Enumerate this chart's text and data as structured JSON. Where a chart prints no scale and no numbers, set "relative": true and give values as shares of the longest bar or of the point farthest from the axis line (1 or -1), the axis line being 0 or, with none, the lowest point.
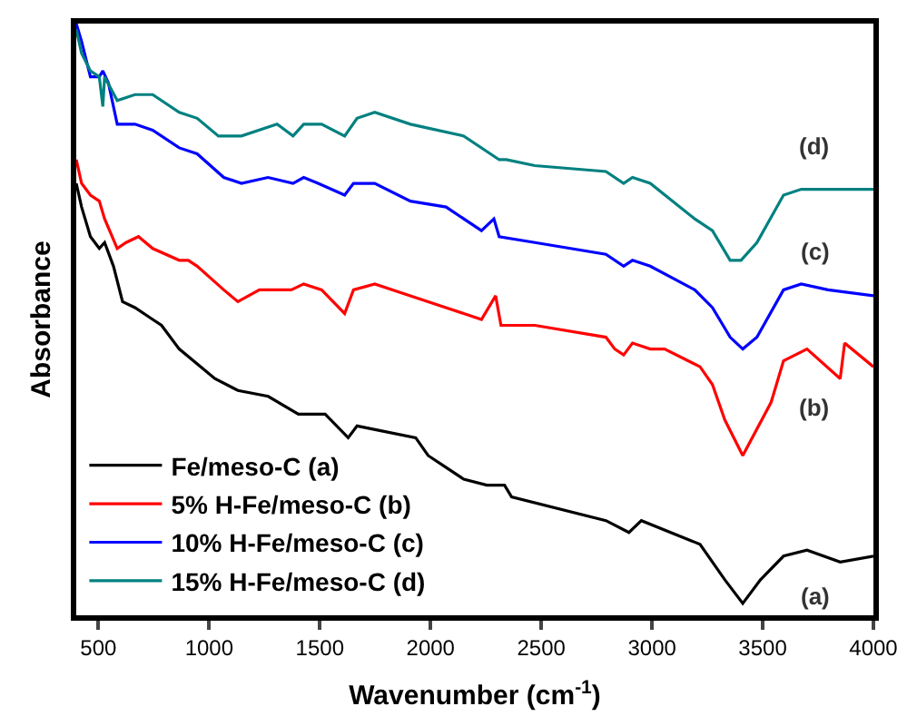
{
  "chart_data": {
    "type": "line",
    "relative": true,
    "xlabel": "Wavenumber (cm$^{-1}$)",
    "ylabel": "Absorbance",
    "xlim": [
      400,
      4000
    ],
    "xticks": [
      500,
      1000,
      1500,
      2000,
      2500,
      3000,
      3500,
      4000
    ],
    "legend": "bottom left",
    "tick_labels": "x",
    "series": [
      {
        "name": "Fe/meso-C (a)",
        "color": "#000000",
        "x": [
          400,
          424,
          464,
          504,
          528,
          568,
          609,
          665,
          745,
          785,
          865,
          1026,
          1130,
          1267,
          1403,
          1524,
          1628,
          1668,
          1933,
          1989,
          2150,
          2254,
          2334,
          2366,
          2792,
          2896,
          2952,
          3217,
          3329,
          3410,
          3490,
          3594,
          3700,
          3850,
          4000
        ],
        "values": [
          0.73,
          0.69,
          0.64,
          0.62,
          0.63,
          0.59,
          0.53,
          0.52,
          0.5,
          0.49,
          0.45,
          0.4,
          0.38,
          0.37,
          0.34,
          0.34,
          0.3,
          0.32,
          0.3,
          0.27,
          0.23,
          0.22,
          0.22,
          0.2,
          0.16,
          0.14,
          0.16,
          0.12,
          0.06,
          0.02,
          0.06,
          0.1,
          0.11,
          0.09,
          0.1
        ]
      },
      {
        "name": "5% H-Fe/meso-C (b)",
        "color": "#ff0000",
        "x": [
          400,
          424,
          464,
          504,
          528,
          585,
          625,
          681,
          745,
          865,
          906,
          946,
          1066,
          1130,
          1227,
          1371,
          1427,
          1508,
          1612,
          1652,
          1748,
          1989,
          2150,
          2230,
          2294,
          2318,
          2471,
          2792,
          2832,
          2872,
          2912,
          2992,
          3057,
          3217,
          3273,
          3329,
          3410,
          3538,
          3594,
          3700,
          3850,
          3870,
          4000
        ],
        "values": [
          0.77,
          0.73,
          0.71,
          0.7,
          0.67,
          0.62,
          0.63,
          0.64,
          0.62,
          0.6,
          0.6,
          0.59,
          0.55,
          0.53,
          0.55,
          0.55,
          0.56,
          0.55,
          0.51,
          0.55,
          0.56,
          0.53,
          0.51,
          0.5,
          0.54,
          0.49,
          0.49,
          0.47,
          0.45,
          0.44,
          0.46,
          0.45,
          0.45,
          0.42,
          0.39,
          0.33,
          0.27,
          0.36,
          0.43,
          0.45,
          0.4,
          0.46,
          0.42
        ]
      },
      {
        "name": "10% H-Fe/meso-C (c)",
        "color": "#0000ff",
        "x": [
          400,
          424,
          464,
          504,
          520,
          545,
          585,
          665,
          745,
          865,
          946,
          1066,
          1146,
          1266,
          1379,
          1427,
          1492,
          1612,
          1652,
          1748,
          1909,
          2070,
          2230,
          2286,
          2310,
          2471,
          2792,
          2872,
          2912,
          2992,
          3193,
          3273,
          3353,
          3410,
          3474,
          3594,
          3674,
          3795,
          4000
        ],
        "values": [
          1.0,
          0.97,
          0.91,
          0.91,
          0.92,
          0.9,
          0.83,
          0.83,
          0.82,
          0.79,
          0.78,
          0.74,
          0.73,
          0.74,
          0.73,
          0.74,
          0.73,
          0.71,
          0.73,
          0.73,
          0.7,
          0.69,
          0.65,
          0.67,
          0.64,
          0.63,
          0.61,
          0.59,
          0.6,
          0.59,
          0.55,
          0.52,
          0.47,
          0.45,
          0.47,
          0.55,
          0.56,
          0.55,
          0.54
        ]
      },
      {
        "name": "15% H-Fe/meso-C (d)",
        "color": "#008080",
        "x": [
          400,
          424,
          464,
          504,
          520,
          528,
          585,
          665,
          745,
          865,
          946,
          1042,
          1146,
          1307,
          1379,
          1427,
          1508,
          1612,
          1668,
          1748,
          1909,
          2150,
          2310,
          2342,
          2471,
          2792,
          2872,
          2912,
          2992,
          3193,
          3273,
          3353,
          3402,
          3474,
          3594,
          3674,
          3795,
          4000
        ],
        "values": [
          0.99,
          0.95,
          0.92,
          0.91,
          0.86,
          0.91,
          0.87,
          0.88,
          0.88,
          0.85,
          0.84,
          0.81,
          0.81,
          0.83,
          0.81,
          0.83,
          0.83,
          0.81,
          0.84,
          0.85,
          0.83,
          0.81,
          0.77,
          0.77,
          0.76,
          0.75,
          0.73,
          0.74,
          0.73,
          0.67,
          0.65,
          0.6,
          0.6,
          0.63,
          0.71,
          0.72,
          0.72,
          0.72
        ]
      }
    ],
    "annotations": [
      "(a)",
      "(b)",
      "(c)",
      "(d)"
    ]
  }
}
